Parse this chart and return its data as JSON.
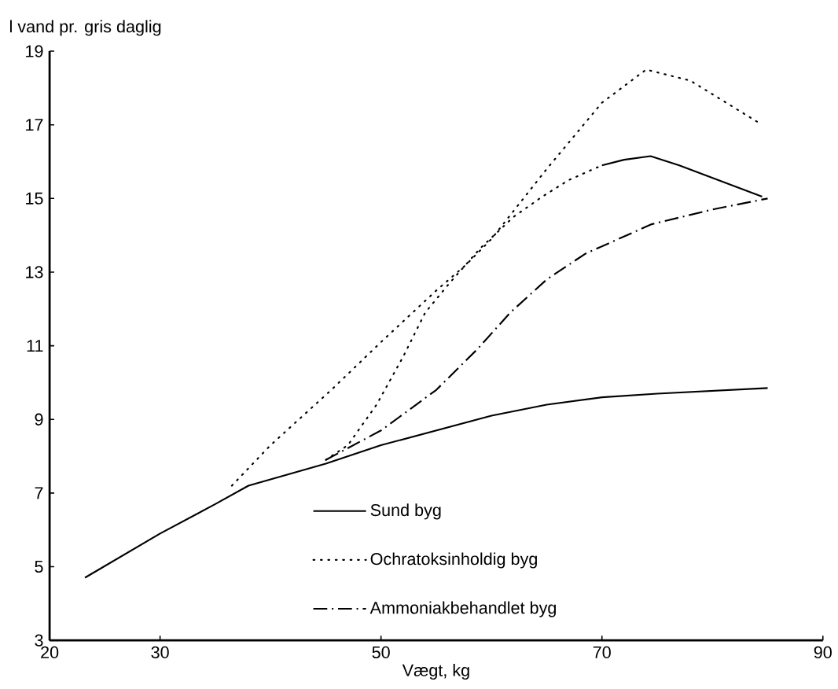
{
  "chart_data": {
    "type": "line",
    "ylabel": "l vand pr. gris daglig",
    "xlabel": "Vægt, kg",
    "xlim": [
      20,
      90
    ],
    "ylim": [
      3,
      19
    ],
    "xticks": [
      20,
      30,
      50,
      70,
      90
    ],
    "yticks": [
      3,
      5,
      7,
      9,
      11,
      13,
      15,
      17,
      19
    ],
    "grid": false,
    "legend": "bottom",
    "series": [
      {
        "name": "Sund byg",
        "color": "#000000",
        "line_style": "solid",
        "x": [
          23.2,
          30,
          35,
          38,
          45,
          50,
          55,
          60,
          65,
          70,
          75,
          85
        ],
        "values": [
          4.7,
          5.9,
          6.7,
          7.2,
          7.8,
          8.3,
          8.7,
          9.1,
          9.4,
          9.6,
          9.7,
          9.85
        ]
      },
      {
        "name": "Ochratoksinholdig byg",
        "color": "#000000",
        "line_style": "dotted",
        "x": [
          36.5,
          40,
          45.5,
          50,
          55,
          57.7,
          60,
          65,
          70,
          74,
          78,
          84.5
        ],
        "values": [
          7.2,
          8.3,
          9.8,
          11.1,
          12.5,
          13.2,
          13.9,
          15.8,
          17.6,
          18.5,
          18.2,
          17.0
        ]
      },
      {
        "name": "Ammoniakbehandlet byg",
        "color": "#000000",
        "line_style": "dashdot",
        "x": [
          45,
          50,
          55,
          58.7,
          61.7,
          65,
          68.5,
          74.5,
          80,
          85
        ],
        "values": [
          7.9,
          8.7,
          9.8,
          10.9,
          11.9,
          12.8,
          13.5,
          14.3,
          14.7,
          15.0
        ]
      },
      {
        "color": "#000000",
        "line_style": "dotted",
        "x": [
          45,
          47,
          49.6,
          52,
          54,
          56.2,
          59,
          62,
          64.6,
          67,
          70
        ],
        "values": [
          7.9,
          8.3,
          9.4,
          10.7,
          11.9,
          12.7,
          13.65,
          14.5,
          15.05,
          15.5,
          15.9
        ]
      },
      {
        "color": "#000000",
        "line_style": "solid",
        "x": [
          70,
          72,
          74.4,
          77,
          84.5
        ],
        "values": [
          15.9,
          16.05,
          16.15,
          15.9,
          15.05
        ]
      }
    ]
  }
}
